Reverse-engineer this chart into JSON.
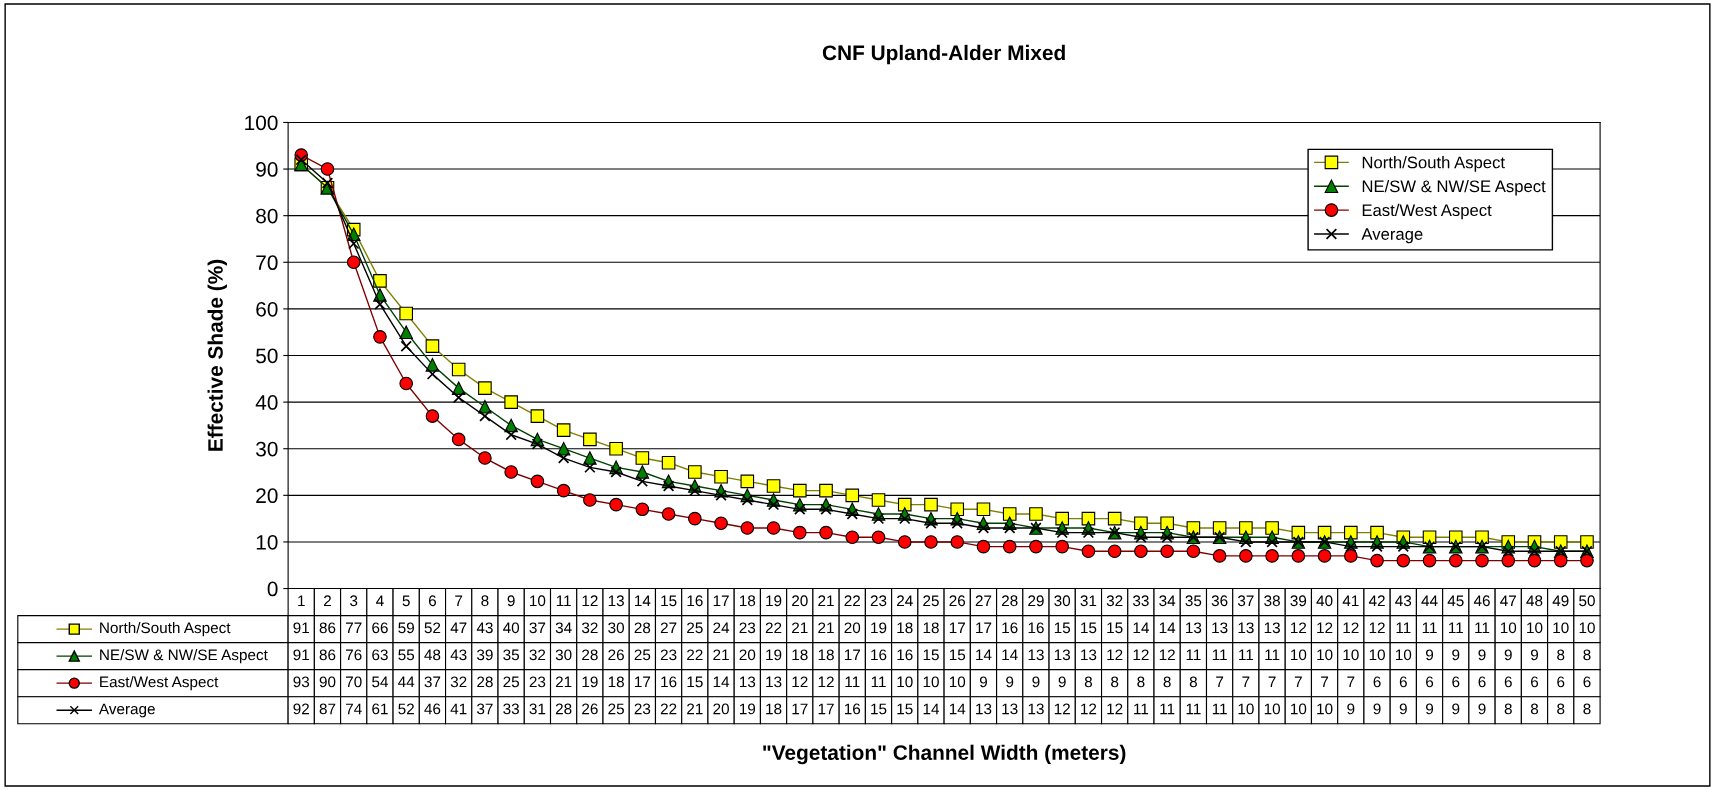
{
  "chart_data": {
    "type": "line",
    "title": "CNF Upland-Alder Mixed",
    "annotations": [
      "\"Vegetation\" Channel Width (meters)"
    ],
    "ylabel": "Effective Shade (%)",
    "categories": [
      "1",
      "2",
      "3",
      "4",
      "5",
      "6",
      "7",
      "8",
      "9",
      "10",
      "11",
      "12",
      "13",
      "14",
      "15",
      "16",
      "17",
      "18",
      "19",
      "20",
      "21",
      "22",
      "23",
      "24",
      "25",
      "26",
      "27",
      "28",
      "29",
      "30",
      "31",
      "32",
      "33",
      "34",
      "35",
      "36",
      "37",
      "38",
      "39",
      "40",
      "41",
      "42",
      "43",
      "44",
      "45",
      "46",
      "47",
      "48",
      "49",
      "50"
    ],
    "ylim": [
      0,
      100
    ],
    "yticks": [
      0,
      10,
      20,
      30,
      40,
      50,
      60,
      70,
      80,
      90,
      100
    ],
    "grid": "y",
    "legend": "top right",
    "data_labels": true,
    "series": [
      {
        "name": "North/South Aspect",
        "color": "#ffff00",
        "marker": "square",
        "values": [
          91,
          86,
          77,
          66,
          59,
          52,
          47,
          43,
          40,
          37,
          34,
          32,
          30,
          28,
          27,
          25,
          24,
          23,
          22,
          21,
          21,
          20,
          19,
          18,
          18,
          17,
          17,
          16,
          16,
          15,
          15,
          15,
          14,
          14,
          13,
          13,
          13,
          13,
          12,
          12,
          12,
          12,
          11,
          11,
          11,
          11,
          10,
          10,
          10,
          10
        ]
      },
      {
        "name": "NE/SW & NW/SE Aspect",
        "color": "#008000",
        "marker": "triangle",
        "values": [
          91,
          86,
          76,
          63,
          55,
          48,
          43,
          39,
          35,
          32,
          30,
          28,
          26,
          25,
          23,
          22,
          21,
          20,
          19,
          18,
          18,
          17,
          16,
          16,
          15,
          15,
          14,
          14,
          13,
          13,
          13,
          12,
          12,
          12,
          11,
          11,
          11,
          11,
          10,
          10,
          10,
          10,
          10,
          9,
          9,
          9,
          9,
          9,
          8,
          8
        ]
      },
      {
        "name": "East/West Aspect",
        "color": "#ff0000",
        "marker": "circle",
        "values": [
          93,
          90,
          70,
          54,
          44,
          37,
          32,
          28,
          25,
          23,
          21,
          19,
          18,
          17,
          16,
          15,
          14,
          13,
          13,
          12,
          12,
          11,
          11,
          10,
          10,
          10,
          9,
          9,
          9,
          9,
          8,
          8,
          8,
          8,
          8,
          7,
          7,
          7,
          7,
          7,
          7,
          6,
          6,
          6,
          6,
          6,
          6,
          6,
          6,
          6
        ]
      },
      {
        "name": "Average",
        "color": "#000000",
        "marker": "cross",
        "values": [
          92,
          87,
          74,
          61,
          52,
          46,
          41,
          37,
          33,
          31,
          28,
          26,
          25,
          23,
          22,
          21,
          20,
          19,
          18,
          17,
          17,
          16,
          15,
          15,
          14,
          14,
          13,
          13,
          13,
          12,
          12,
          12,
          11,
          11,
          11,
          11,
          10,
          10,
          10,
          10,
          9,
          9,
          9,
          9,
          9,
          9,
          8,
          8,
          8,
          8
        ]
      }
    ]
  }
}
